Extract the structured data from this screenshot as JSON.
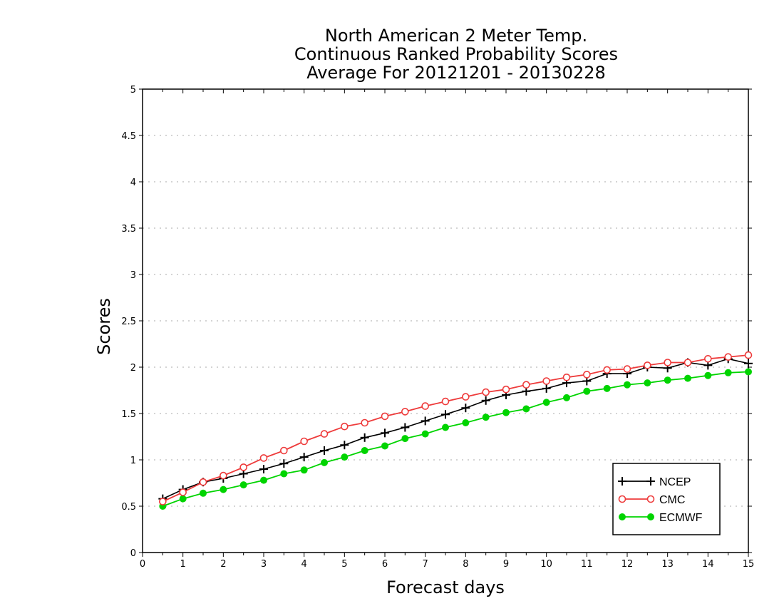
{
  "chart_data": {
    "type": "line",
    "title_lines": [
      "North American 2 Meter Temp.",
      "Continuous Ranked Probability Scores",
      "Average For 20121201 - 20130228"
    ],
    "xlabel": "Forecast days",
    "ylabel": "Scores",
    "xlim": [
      0,
      15
    ],
    "ylim": [
      0,
      5
    ],
    "x_ticks": [
      "0",
      "1",
      "2",
      "3",
      "4",
      "5",
      "6",
      "7",
      "8",
      "9",
      "10",
      "11",
      "12",
      "13",
      "14",
      "15"
    ],
    "y_ticks": [
      "0",
      "0.5",
      "1",
      "1.5",
      "2",
      "2.5",
      "3",
      "3.5",
      "4",
      "4.5",
      "5"
    ],
    "grid": "horizontal dotted",
    "legend_position": "bottom-right",
    "x": [
      0.5,
      1,
      1.5,
      2,
      2.5,
      3,
      3.5,
      4,
      4.5,
      5,
      5.5,
      6,
      6.5,
      7,
      7.5,
      8,
      8.5,
      9,
      9.5,
      10,
      10.5,
      11,
      11.5,
      12,
      12.5,
      13,
      13.5,
      14,
      14.5,
      15
    ],
    "series": [
      {
        "name": "NCEP",
        "color": "#000000",
        "marker": "plus",
        "values": [
          0.58,
          0.68,
          0.76,
          0.8,
          0.85,
          0.9,
          0.96,
          1.03,
          1.1,
          1.16,
          1.24,
          1.29,
          1.35,
          1.42,
          1.49,
          1.56,
          1.64,
          1.7,
          1.74,
          1.77,
          1.83,
          1.85,
          1.93,
          1.93,
          2.0,
          1.99,
          2.05,
          2.02,
          2.09,
          2.04
        ]
      },
      {
        "name": "CMC",
        "color": "#ee3b3b",
        "marker": "open-circle",
        "values": [
          0.55,
          0.65,
          0.76,
          0.83,
          0.92,
          1.02,
          1.1,
          1.2,
          1.28,
          1.36,
          1.4,
          1.47,
          1.52,
          1.58,
          1.63,
          1.68,
          1.73,
          1.76,
          1.81,
          1.85,
          1.89,
          1.92,
          1.97,
          1.98,
          2.02,
          2.05,
          2.05,
          2.09,
          2.11,
          2.13
        ]
      },
      {
        "name": "ECMWF",
        "color": "#00d400",
        "marker": "filled-circle",
        "values": [
          0.5,
          0.58,
          0.64,
          0.68,
          0.73,
          0.78,
          0.85,
          0.89,
          0.97,
          1.03,
          1.1,
          1.15,
          1.23,
          1.28,
          1.35,
          1.4,
          1.46,
          1.51,
          1.55,
          1.62,
          1.67,
          1.74,
          1.77,
          1.81,
          1.83,
          1.86,
          1.88,
          1.91,
          1.94,
          1.95
        ]
      }
    ]
  }
}
